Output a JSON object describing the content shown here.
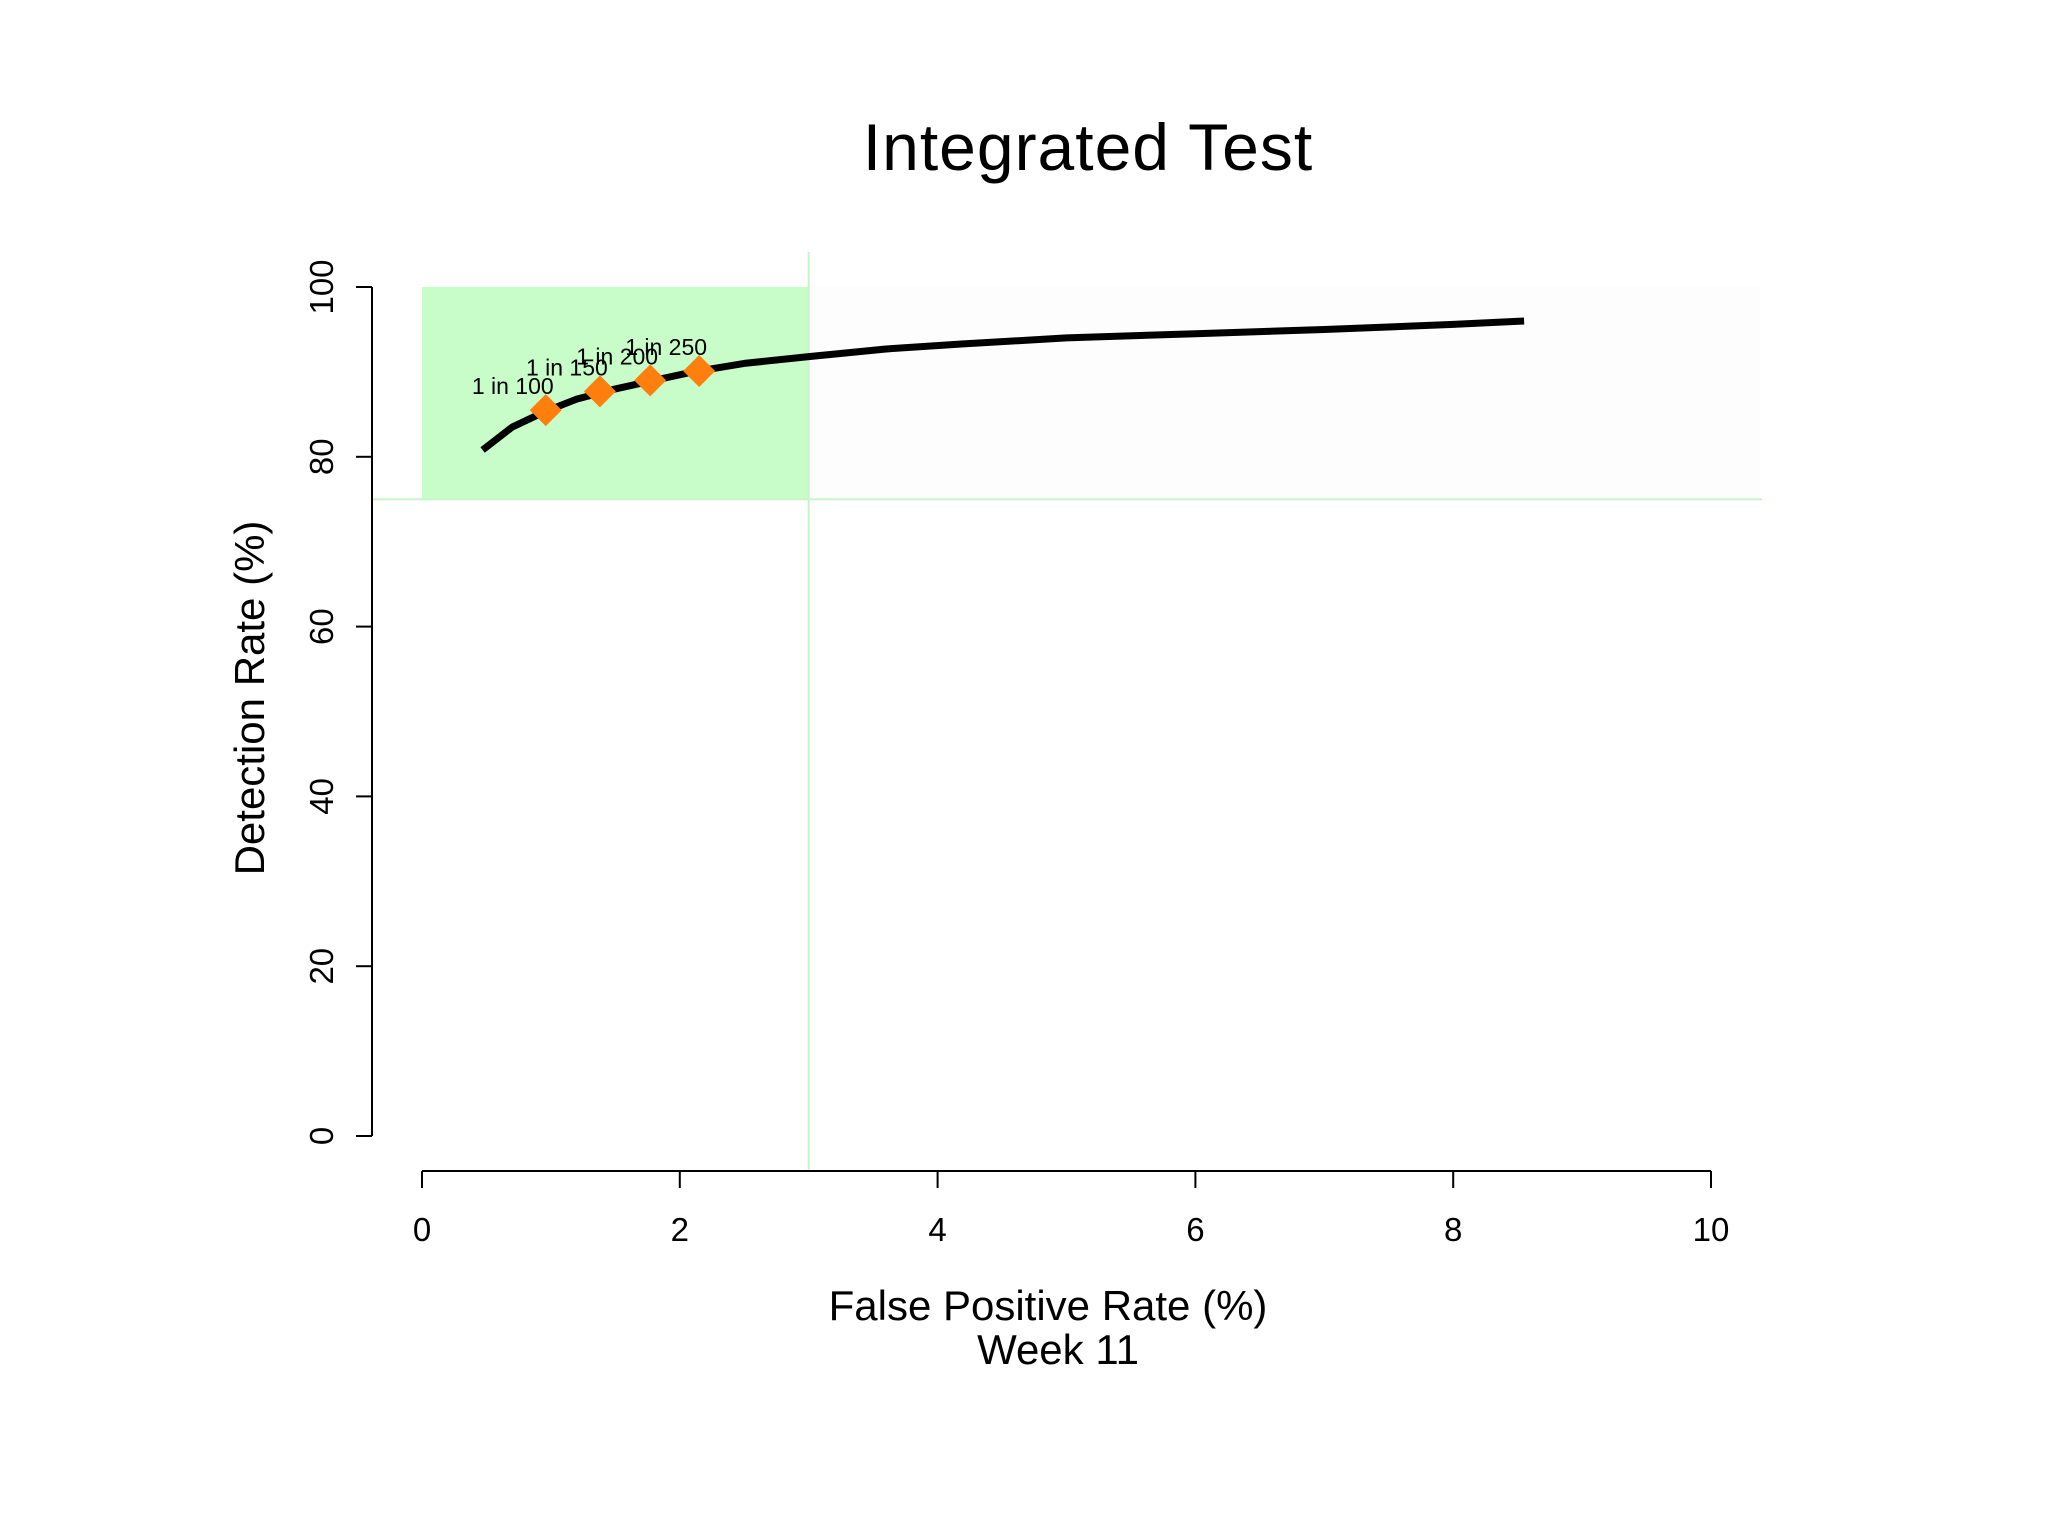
{
  "chart_data": {
    "type": "line",
    "title": "Integrated Test",
    "xlabel": "False Positive Rate (%)",
    "xlabel_line2": "Week 11",
    "ylabel": "Detection Rate (%)",
    "xlim": [
      0,
      10
    ],
    "ylim": [
      0,
      100
    ],
    "x_ticks": [
      0,
      2,
      4,
      6,
      8,
      10
    ],
    "y_ticks": [
      0,
      20,
      40,
      60,
      80,
      100
    ],
    "x_tick_labels": [
      "0",
      "2",
      "4",
      "6",
      "8",
      "10"
    ],
    "y_tick_labels": [
      "0",
      "20",
      "40",
      "60",
      "80",
      "100"
    ],
    "grid": false,
    "target_region": {
      "x": [
        0,
        3
      ],
      "y": [
        75,
        100
      ],
      "color": "#c8fcc8",
      "line_color": "#c8f5c8"
    },
    "series": [
      {
        "x": [
          0.47,
          0.7,
          0.95,
          1.2,
          1.5,
          1.8,
          2.1,
          2.5,
          3.0,
          3.6,
          4.2,
          5.0,
          6.0,
          7.0,
          8.0,
          8.55
        ],
        "y": [
          80.8,
          83.5,
          85.3,
          86.8,
          88.0,
          89.0,
          90.0,
          91.0,
          91.8,
          92.7,
          93.3,
          94.0,
          94.5,
          95.0,
          95.6,
          96.0
        ],
        "color": "#000000"
      }
    ],
    "markers": [
      {
        "label": "1 in 100",
        "x": 0.96,
        "y": 85.5
      },
      {
        "label": "1 in 150",
        "x": 1.38,
        "y": 87.7
      },
      {
        "label": "1 in 200",
        "x": 1.77,
        "y": 89.0
      },
      {
        "label": "1 in 250",
        "x": 2.15,
        "y": 90.1
      }
    ],
    "marker_color": "#ff7f0e"
  }
}
